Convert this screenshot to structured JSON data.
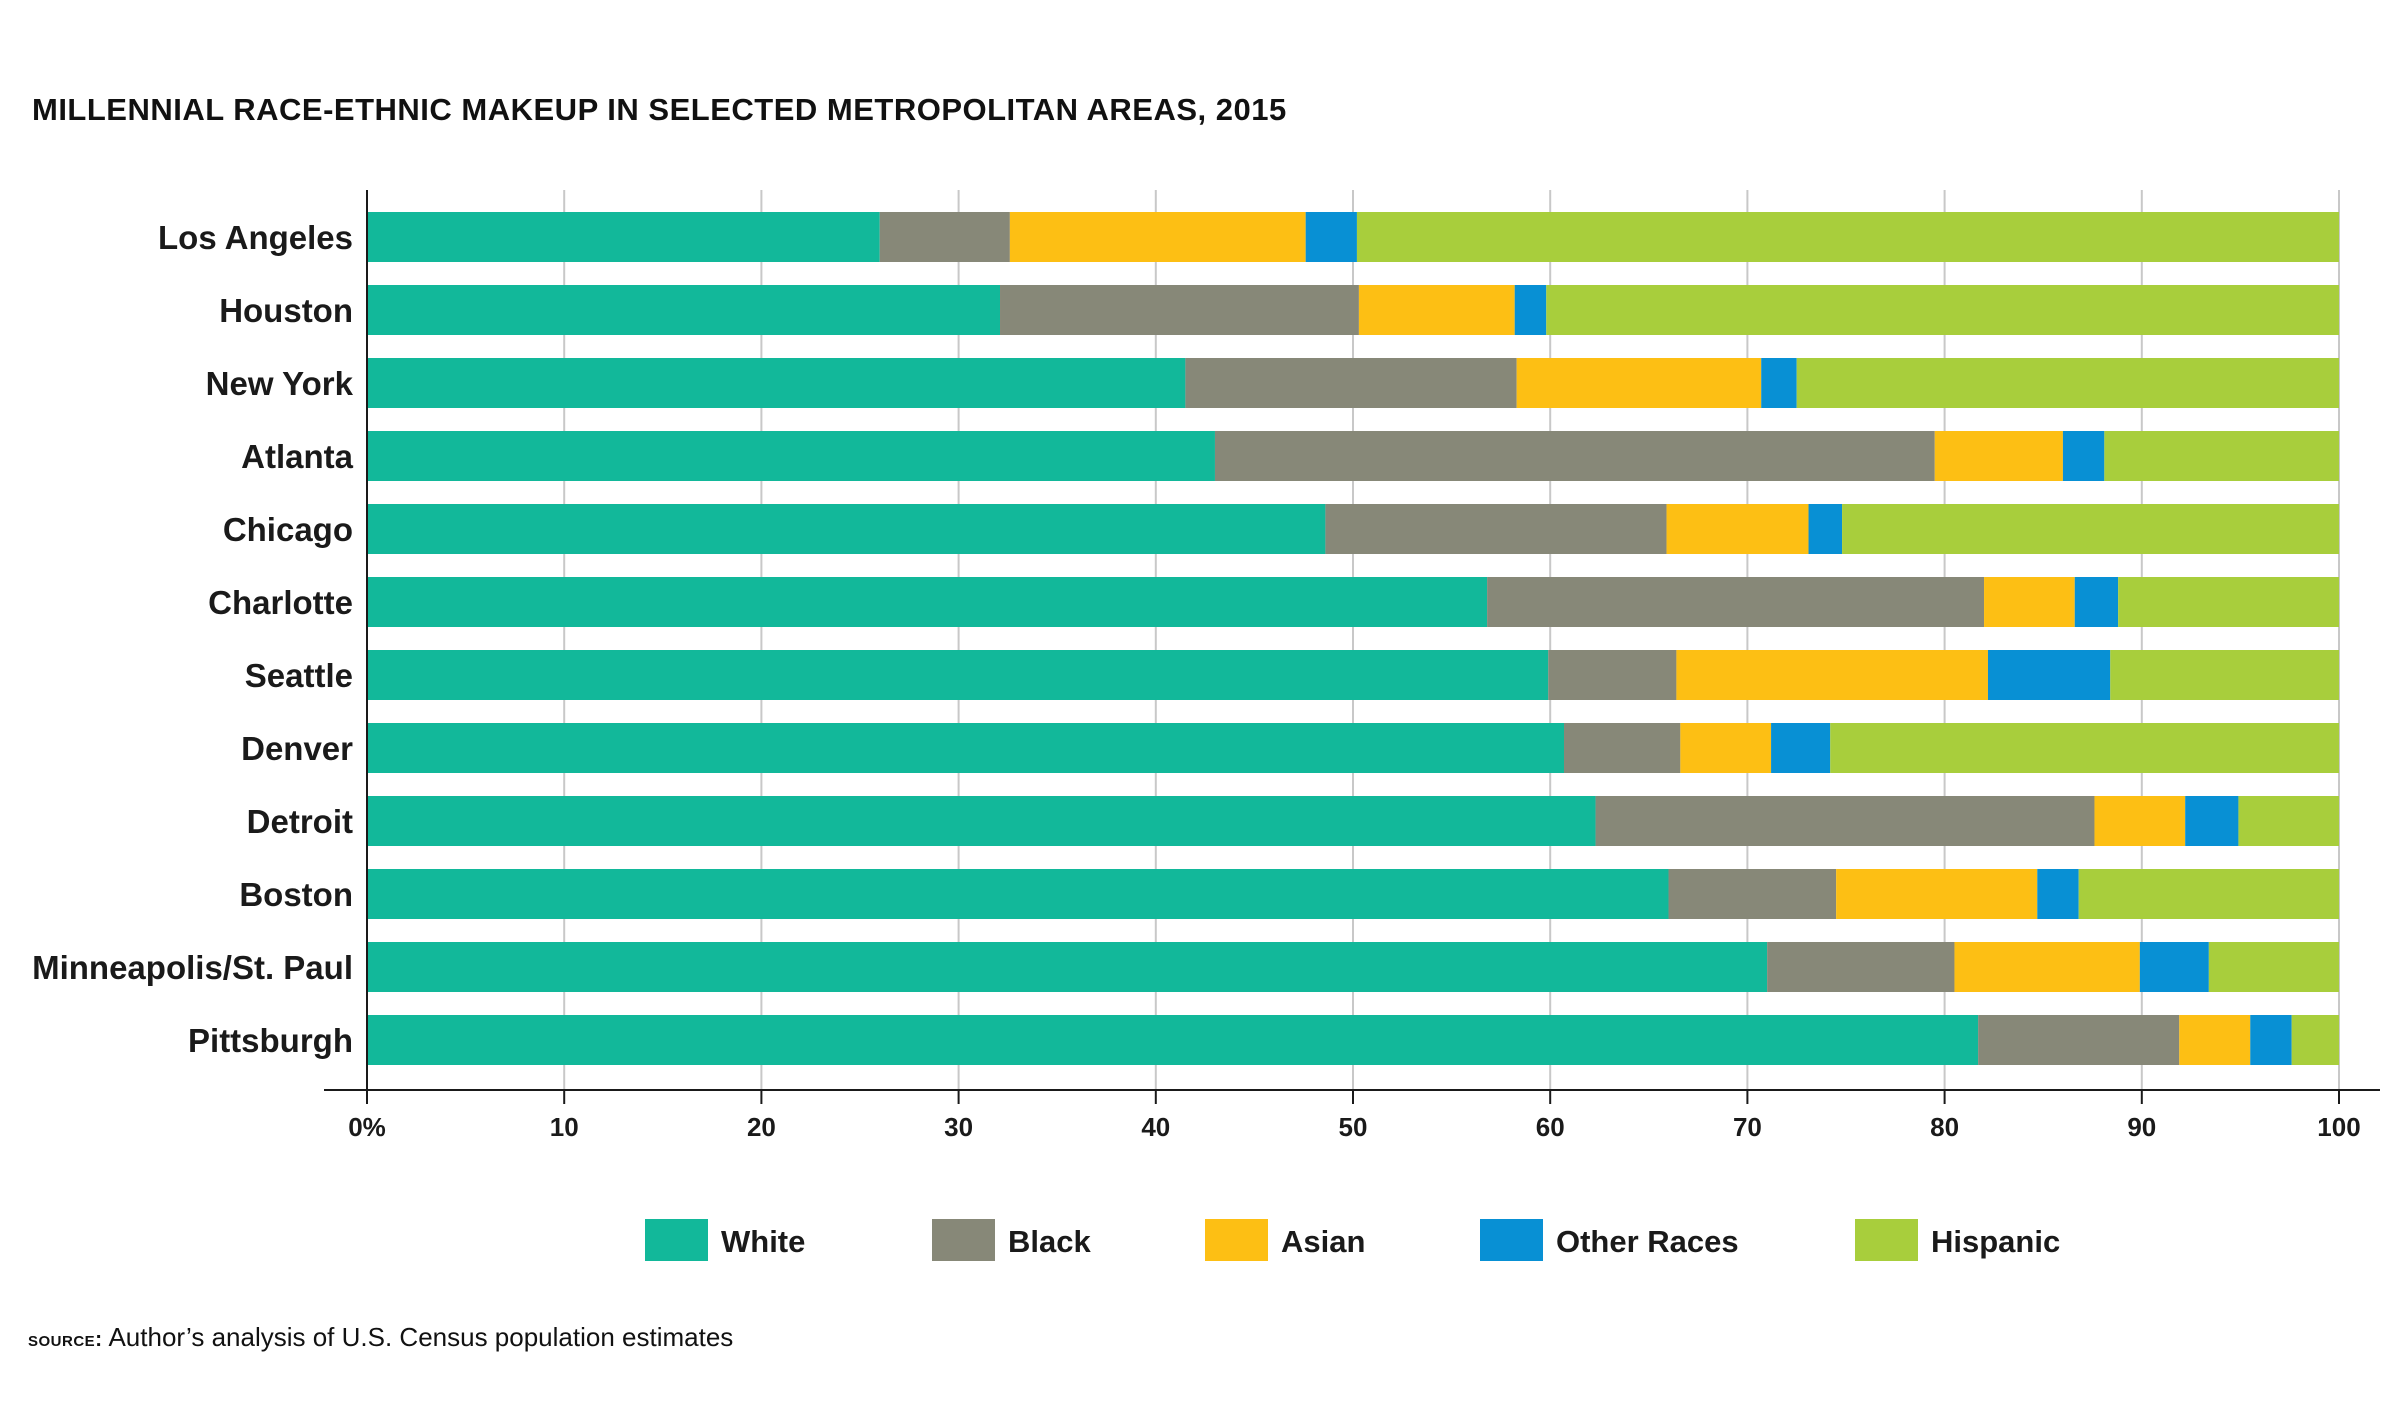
{
  "chart_data": {
    "type": "bar",
    "orientation": "horizontal",
    "stacked": true,
    "title": "MILLENNIAL RACE-ETHNIC MAKEUP IN SELECTED METROPOLITAN AREAS, 2015",
    "xlabel": "",
    "ylabel": "",
    "xlim": [
      0,
      100
    ],
    "x_ticks": [
      "0%",
      "10",
      "20",
      "30",
      "40",
      "50",
      "60",
      "70",
      "80",
      "90",
      "100"
    ],
    "grid": "vertical",
    "legend_position": "bottom",
    "categories": [
      "Los Angeles",
      "Houston",
      "New York",
      "Atlanta",
      "Chicago",
      "Charlotte",
      "Seattle",
      "Denver",
      "Detroit",
      "Boston",
      "Minneapolis/St. Paul",
      "Pittsburgh"
    ],
    "series": [
      {
        "name": "White",
        "color": "#12b89a",
        "values": [
          26.0,
          32.1,
          41.5,
          43.0,
          48.6,
          56.8,
          59.9,
          60.7,
          62.3,
          66.0,
          71.0,
          81.7
        ]
      },
      {
        "name": "Black",
        "color": "#878878",
        "values": [
          6.6,
          18.2,
          16.8,
          36.5,
          17.3,
          25.2,
          6.5,
          5.9,
          25.3,
          8.5,
          9.5,
          10.2
        ]
      },
      {
        "name": "Asian",
        "color": "#fdbf14",
        "values": [
          15.0,
          7.9,
          12.4,
          6.5,
          7.2,
          4.6,
          15.8,
          4.6,
          4.6,
          10.2,
          9.4,
          3.6
        ]
      },
      {
        "name": "Other Races",
        "color": "#0890d4",
        "values": [
          2.6,
          1.6,
          1.8,
          2.1,
          1.7,
          2.2,
          6.2,
          3.0,
          2.7,
          2.1,
          3.5,
          2.1
        ]
      },
      {
        "name": "Hispanic",
        "color": "#a8ce3c",
        "values": [
          49.8,
          40.2,
          27.5,
          11.9,
          25.2,
          11.2,
          11.6,
          25.8,
          5.1,
          13.2,
          6.6,
          2.4
        ]
      }
    ],
    "source_label": "source:",
    "source_text": "Author’s analysis of U.S. Census population estimates"
  }
}
